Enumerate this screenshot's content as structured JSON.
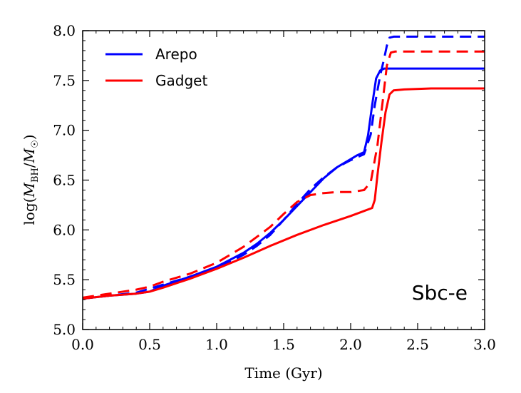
{
  "chart_data": {
    "type": "line",
    "title": "",
    "xlabel": "Time (Gyr)",
    "ylabel_parts": {
      "prefix": "log(",
      "m1": "M",
      "sub1": "BH",
      "slash": "/",
      "m2": "M",
      "sub2": "☉",
      "suffix": ")"
    },
    "xlim": [
      0.0,
      3.0
    ],
    "ylim": [
      5.0,
      8.0
    ],
    "xticks": [
      "0.0",
      "0.5",
      "1.0",
      "1.5",
      "2.0",
      "2.5",
      "3.0"
    ],
    "yticks": [
      "5.0",
      "5.5",
      "6.0",
      "6.5",
      "7.0",
      "7.5",
      "8.0"
    ],
    "legend_position": "top-left",
    "annotation": "Sbc-e",
    "legend": [
      {
        "label": "Arepo",
        "color": "#0000ff"
      },
      {
        "label": "Gadget",
        "color": "#ff0000"
      }
    ],
    "series": [
      {
        "name": "Arepo (solid)",
        "color": "#0000ff",
        "style": "solid",
        "x": [
          0.0,
          0.2,
          0.4,
          0.5,
          0.6,
          0.8,
          1.0,
          1.2,
          1.3,
          1.4,
          1.5,
          1.6,
          1.7,
          1.8,
          1.9,
          2.0,
          2.05,
          2.1,
          2.13,
          2.16,
          2.19,
          2.22,
          2.25,
          2.3,
          2.5,
          2.8,
          3.0
        ],
        "y": [
          5.31,
          5.34,
          5.36,
          5.38,
          5.44,
          5.53,
          5.63,
          5.77,
          5.86,
          5.97,
          6.1,
          6.24,
          6.38,
          6.52,
          6.63,
          6.71,
          6.75,
          6.78,
          6.95,
          7.25,
          7.52,
          7.6,
          7.62,
          7.62,
          7.62,
          7.62,
          7.62
        ]
      },
      {
        "name": "Arepo (dashed)",
        "color": "#0000ff",
        "style": "dashed",
        "x": [
          0.0,
          0.2,
          0.4,
          0.6,
          0.8,
          1.0,
          1.2,
          1.3,
          1.4,
          1.5,
          1.6,
          1.7,
          1.8,
          1.9,
          2.0,
          2.1,
          2.15,
          2.18,
          2.22,
          2.25,
          2.27,
          2.29,
          2.32,
          2.5,
          3.0
        ],
        "y": [
          5.31,
          5.34,
          5.37,
          5.45,
          5.53,
          5.61,
          5.75,
          5.84,
          5.95,
          6.1,
          6.26,
          6.41,
          6.53,
          6.63,
          6.7,
          6.76,
          6.96,
          7.25,
          7.55,
          7.72,
          7.85,
          7.93,
          7.94,
          7.94,
          7.94
        ]
      },
      {
        "name": "Gadget (solid)",
        "color": "#ff0000",
        "style": "solid",
        "x": [
          0.0,
          0.2,
          0.4,
          0.5,
          0.6,
          0.8,
          1.0,
          1.2,
          1.4,
          1.6,
          1.8,
          2.0,
          2.1,
          2.16,
          2.18,
          2.2,
          2.23,
          2.26,
          2.29,
          2.32,
          2.4,
          2.6,
          3.0
        ],
        "y": [
          5.31,
          5.34,
          5.36,
          5.38,
          5.42,
          5.51,
          5.61,
          5.72,
          5.84,
          5.95,
          6.05,
          6.14,
          6.19,
          6.22,
          6.3,
          6.55,
          6.88,
          7.18,
          7.36,
          7.4,
          7.41,
          7.42,
          7.42
        ]
      },
      {
        "name": "Gadget (dashed)",
        "color": "#ff0000",
        "style": "dashed",
        "x": [
          0.0,
          0.2,
          0.4,
          0.5,
          0.6,
          0.8,
          1.0,
          1.2,
          1.4,
          1.5,
          1.6,
          1.7,
          1.8,
          1.9,
          2.0,
          2.1,
          2.15,
          2.2,
          2.24,
          2.27,
          2.3,
          2.33,
          2.5,
          3.0
        ],
        "y": [
          5.32,
          5.36,
          5.4,
          5.43,
          5.48,
          5.56,
          5.67,
          5.83,
          6.03,
          6.16,
          6.28,
          6.35,
          6.37,
          6.38,
          6.38,
          6.4,
          6.48,
          6.85,
          7.3,
          7.65,
          7.78,
          7.79,
          7.79,
          7.79
        ]
      }
    ]
  }
}
